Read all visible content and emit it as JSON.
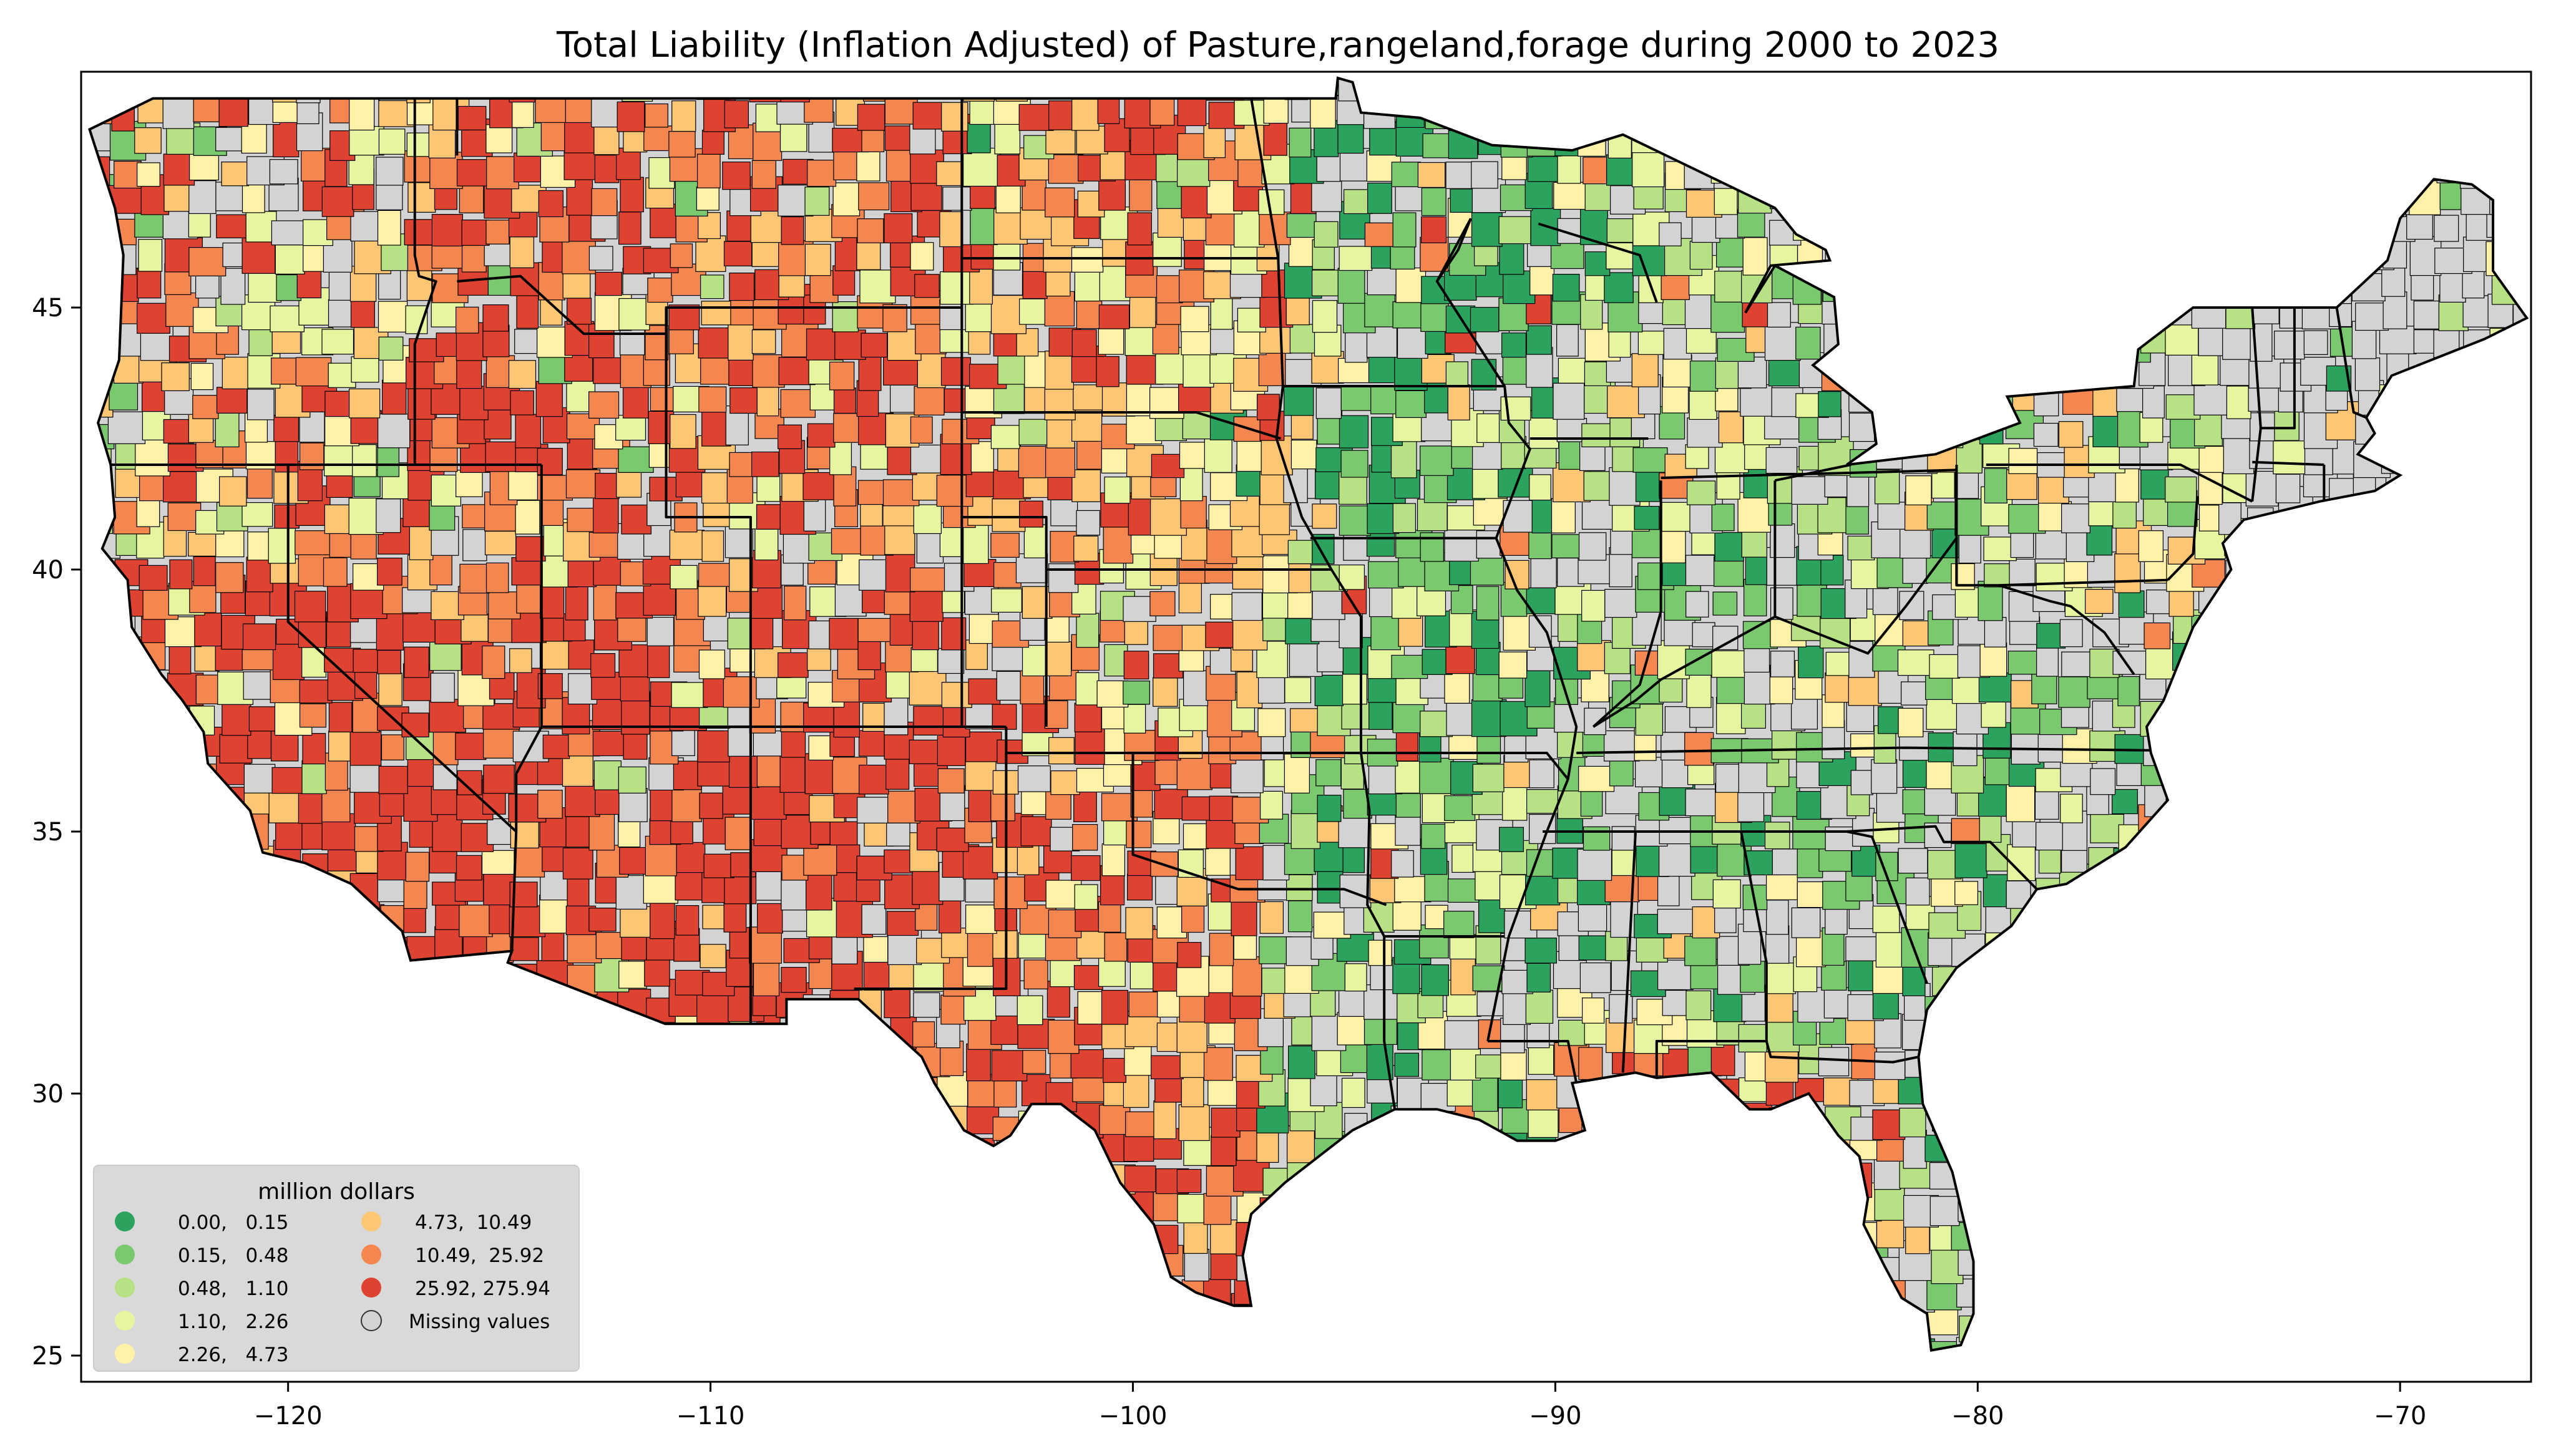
{
  "title": "Total Liability  (Inflation Adjusted) of Pasture,rangeland,forage during 2000 to 2023",
  "axes": {
    "x_ticks": [
      {
        "value": -120,
        "label": "−120"
      },
      {
        "value": -110,
        "label": "−110"
      },
      {
        "value": -100,
        "label": "−100"
      },
      {
        "value": -90,
        "label": "−90"
      },
      {
        "value": -80,
        "label": "−80"
      },
      {
        "value": -70,
        "label": "−70"
      }
    ],
    "y_ticks": [
      {
        "value": 25,
        "label": "25"
      },
      {
        "value": 30,
        "label": "30"
      },
      {
        "value": 35,
        "label": "35"
      },
      {
        "value": 40,
        "label": "40"
      },
      {
        "value": 45,
        "label": "45"
      }
    ],
    "xlim": [
      -124.9,
      -66.9
    ],
    "ylim": [
      24.5,
      49.5
    ]
  },
  "legend": {
    "title": "million dollars",
    "placement": "lower-left",
    "items": [
      {
        "label": "0.00,   0.15",
        "color": "#2ca25f"
      },
      {
        "label": "0.15,   0.48",
        "color": "#7bc96f"
      },
      {
        "label": "0.48,   1.10",
        "color": "#b8e186"
      },
      {
        "label": "1.10,   2.26",
        "color": "#e6f5a0"
      },
      {
        "label": "2.26,   4.73",
        "color": "#fff2a8"
      },
      {
        "label": "4.73,  10.49",
        "color": "#fdc675"
      },
      {
        "label": "10.49,  25.92",
        "color": "#f4874f"
      },
      {
        "label": "25.92, 275.94",
        "color": "#de4230"
      },
      {
        "label": "Missing values",
        "color": "#d3d3d3"
      }
    ]
  },
  "colors": {
    "missing": "#d3d3d3",
    "state_border": "#000000",
    "legend_bg": "#d9d9d9"
  }
}
